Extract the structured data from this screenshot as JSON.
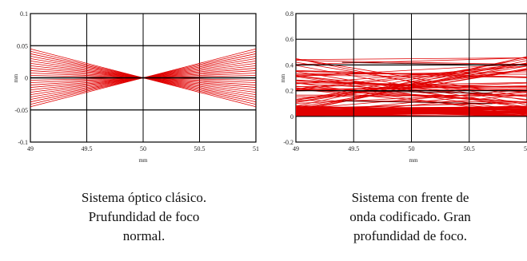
{
  "chart_data": [
    {
      "type": "line",
      "xlabel": "mm",
      "ylabel": "mm",
      "xlim": [
        49,
        51
      ],
      "ylim": [
        -0.1,
        0.1
      ],
      "x_ticks": [
        "49",
        "49.5",
        "50",
        "50.5",
        "51"
      ],
      "y_ticks": [
        "0.1",
        "0.05",
        "0",
        "-0.05",
        "-0.1"
      ],
      "grid": true,
      "ray_color": "#e00000",
      "focus": [
        50,
        0
      ],
      "ray_count": 25,
      "edge_y_range": [
        -0.045,
        0.045
      ],
      "caption": [
        "Sistema óptico clásico.",
        "Prufundidad de foco",
        "normal."
      ]
    },
    {
      "type": "line",
      "xlabel": "mm",
      "ylabel": "mm",
      "xlim": [
        49,
        51
      ],
      "ylim": [
        -0.2,
        0.8
      ],
      "x_ticks": [
        "49",
        "49.5",
        "50",
        "50.5",
        "51"
      ],
      "y_ticks": [
        "0.8",
        "0.6",
        "0.4",
        "0.2",
        "0",
        "-0.2"
      ],
      "grid": true,
      "ray_color": "#e00000",
      "ray_band_y": [
        0.0,
        0.47
      ],
      "caption": [
        "Sistema con frente de",
        "onda codificado. Gran",
        "profundidad de foco."
      ]
    }
  ]
}
